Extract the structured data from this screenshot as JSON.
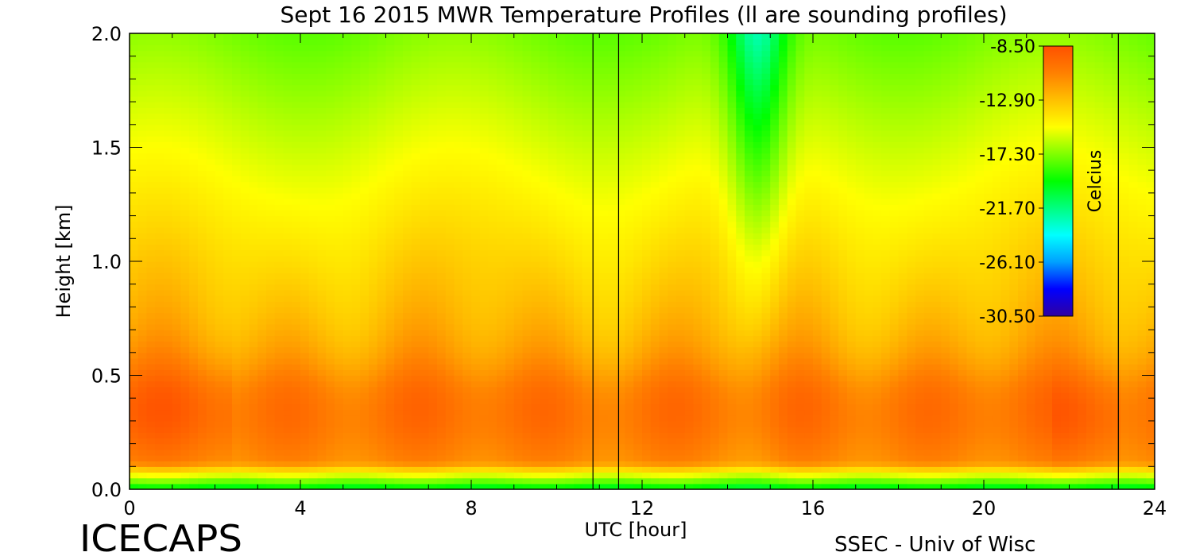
{
  "header": {
    "title": "Sept 16 2015 MWR Temperature Profiles (ll are sounding profiles)",
    "logo_text": "ICECAPS",
    "credit": "SSEC - Univ of Wisc"
  },
  "chart_data": {
    "type": "heatmap",
    "title": "Sept 16 2015 MWR Temperature Profiles (ll are sounding profiles)",
    "xlabel": "UTC [hour]",
    "ylabel": "Height [km]",
    "xlim": [
      0,
      24
    ],
    "ylim": [
      0,
      2
    ],
    "x_ticks": [
      0,
      4,
      8,
      12,
      16,
      20,
      24
    ],
    "x_tick_labels": [
      "0",
      "4",
      "8",
      "12",
      "16",
      "20",
      "24"
    ],
    "y_ticks": [
      0,
      0.5,
      1,
      1.5,
      2
    ],
    "y_tick_labels": [
      "0.0",
      "0.5",
      "1.0",
      "1.5",
      "2.0"
    ],
    "sounding_times_hour": [
      10.85,
      11.45,
      23.15
    ],
    "colorbar": {
      "label": "Celcius",
      "min": -30.5,
      "max": -8.5,
      "tick_values": [
        -8.5,
        -12.9,
        -17.3,
        -21.7,
        -26.1,
        -30.5
      ],
      "tick_labels": [
        "-8.50",
        "-12.90",
        "-17.30",
        "-21.70",
        "-26.10",
        "-30.50"
      ],
      "colors": [
        "#3000a0",
        "#0000ff",
        "#00a0ff",
        "#00ffff",
        "#00ff80",
        "#00ff00",
        "#80ff00",
        "#ffff00",
        "#ffc000",
        "#ff8000",
        "#ff5000"
      ],
      "placement": "top-right"
    }
  }
}
